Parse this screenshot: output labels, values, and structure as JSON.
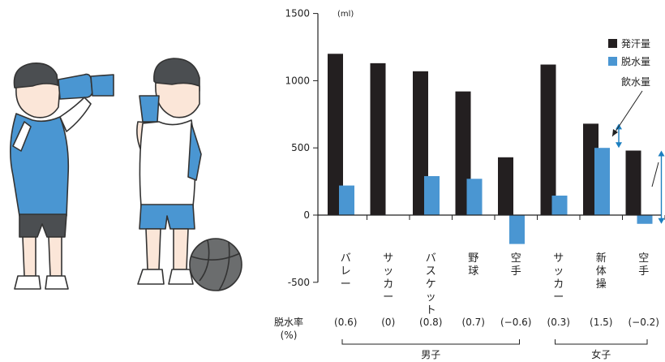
{
  "chart_data": {
    "type": "bar",
    "unit_label": "(ml)",
    "yticks": [
      1500,
      1000,
      500,
      0,
      -500
    ],
    "ylim": [
      -500,
      1500
    ],
    "categories": [
      "バレー",
      "サッカー",
      "バスケット",
      "野球",
      "空手",
      "サッカー",
      "新体操",
      "空手"
    ],
    "series": [
      {
        "name": "発汗量",
        "color": "#231f20",
        "values": [
          1200,
          1130,
          1070,
          920,
          430,
          1120,
          680,
          480
        ]
      },
      {
        "name": "脱水量",
        "color": "#4a96d2",
        "values": [
          220,
          0,
          290,
          270,
          -215,
          145,
          500,
          -65
        ]
      }
    ],
    "legend": {
      "extra_label": "飲水量",
      "placement": "top-right"
    },
    "drink_arrow_color": "#1c7fc0",
    "dehydration_rate_label": [
      "脱水率",
      "(%)"
    ],
    "dehydration_rates": [
      "(0.6)",
      "(0)",
      "(0.8)",
      "(0.7)",
      "(−0.6)",
      "(0.3)",
      "(1.5)",
      "(−0.2)"
    ],
    "groups": [
      {
        "label": "男子",
        "from": 0,
        "to": 4
      },
      {
        "label": "女子",
        "from": 5,
        "to": 7
      }
    ]
  },
  "colors": {
    "shirt_blue": "#4a96d2",
    "skin": "#fbe6d8",
    "ball": "#6b6d6e"
  }
}
